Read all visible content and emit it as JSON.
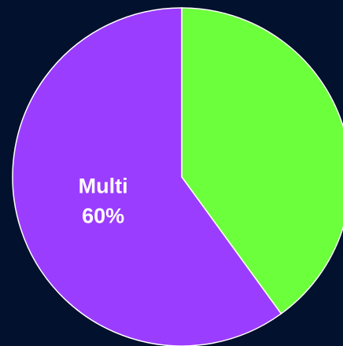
{
  "chart_data": {
    "type": "pie",
    "categories": [
      null,
      "Multi"
    ],
    "values": [
      40,
      60
    ],
    "value_labels": [
      null,
      "60%"
    ],
    "colors": [
      "#6cff3b",
      "#9b3dff"
    ]
  }
}
